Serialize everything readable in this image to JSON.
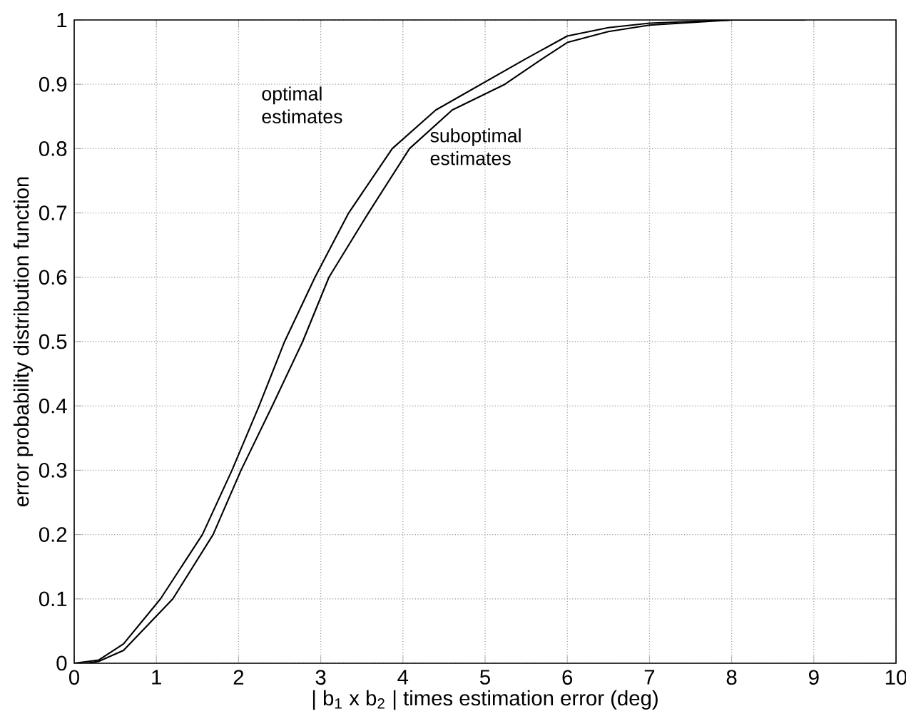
{
  "chart_data": {
    "type": "line",
    "xlabel": "| b$_{1}$ x b$_{2}$ | times estimation error (deg)",
    "ylabel": "error probability distribution function",
    "xlim": [
      0,
      10
    ],
    "ylim": [
      0,
      1
    ],
    "xticks": [
      0,
      1,
      2,
      3,
      4,
      5,
      6,
      7,
      8,
      9,
      10
    ],
    "yticks": [
      0,
      0.1,
      0.2,
      0.3,
      0.4,
      0.5,
      0.6,
      0.7,
      0.8,
      0.9,
      1
    ],
    "grid": true,
    "marker": "none",
    "line_style": "solid",
    "series": [
      {
        "name": "optimal estimates",
        "color": "#000000",
        "x": [
          0,
          0.3,
          0.6,
          1.05,
          1.56,
          1.92,
          2.25,
          2.56,
          2.93,
          3.34,
          3.87,
          4.4,
          4.95,
          5.5,
          6,
          6.5,
          7,
          8,
          8.9
        ],
        "values": [
          0,
          0.005,
          0.03,
          0.1,
          0.2,
          0.3,
          0.4,
          0.5,
          0.6,
          0.7,
          0.8,
          0.86,
          0.9,
          0.94,
          0.975,
          0.988,
          0.995,
          1,
          1
        ]
      },
      {
        "name": "suboptimal estimates",
        "color": "#000000",
        "x": [
          0.15,
          0.3,
          0.6,
          1.2,
          1.69,
          2.03,
          2.41,
          2.78,
          3.1,
          3.58,
          4.08,
          4.6,
          5.24,
          5.7,
          6,
          6.5,
          7,
          8,
          8.6
        ],
        "values": [
          0,
          0.003,
          0.02,
          0.1,
          0.2,
          0.3,
          0.4,
          0.5,
          0.6,
          0.7,
          0.8,
          0.86,
          0.9,
          0.94,
          0.965,
          0.982,
          0.992,
          1,
          1
        ]
      }
    ]
  }
}
